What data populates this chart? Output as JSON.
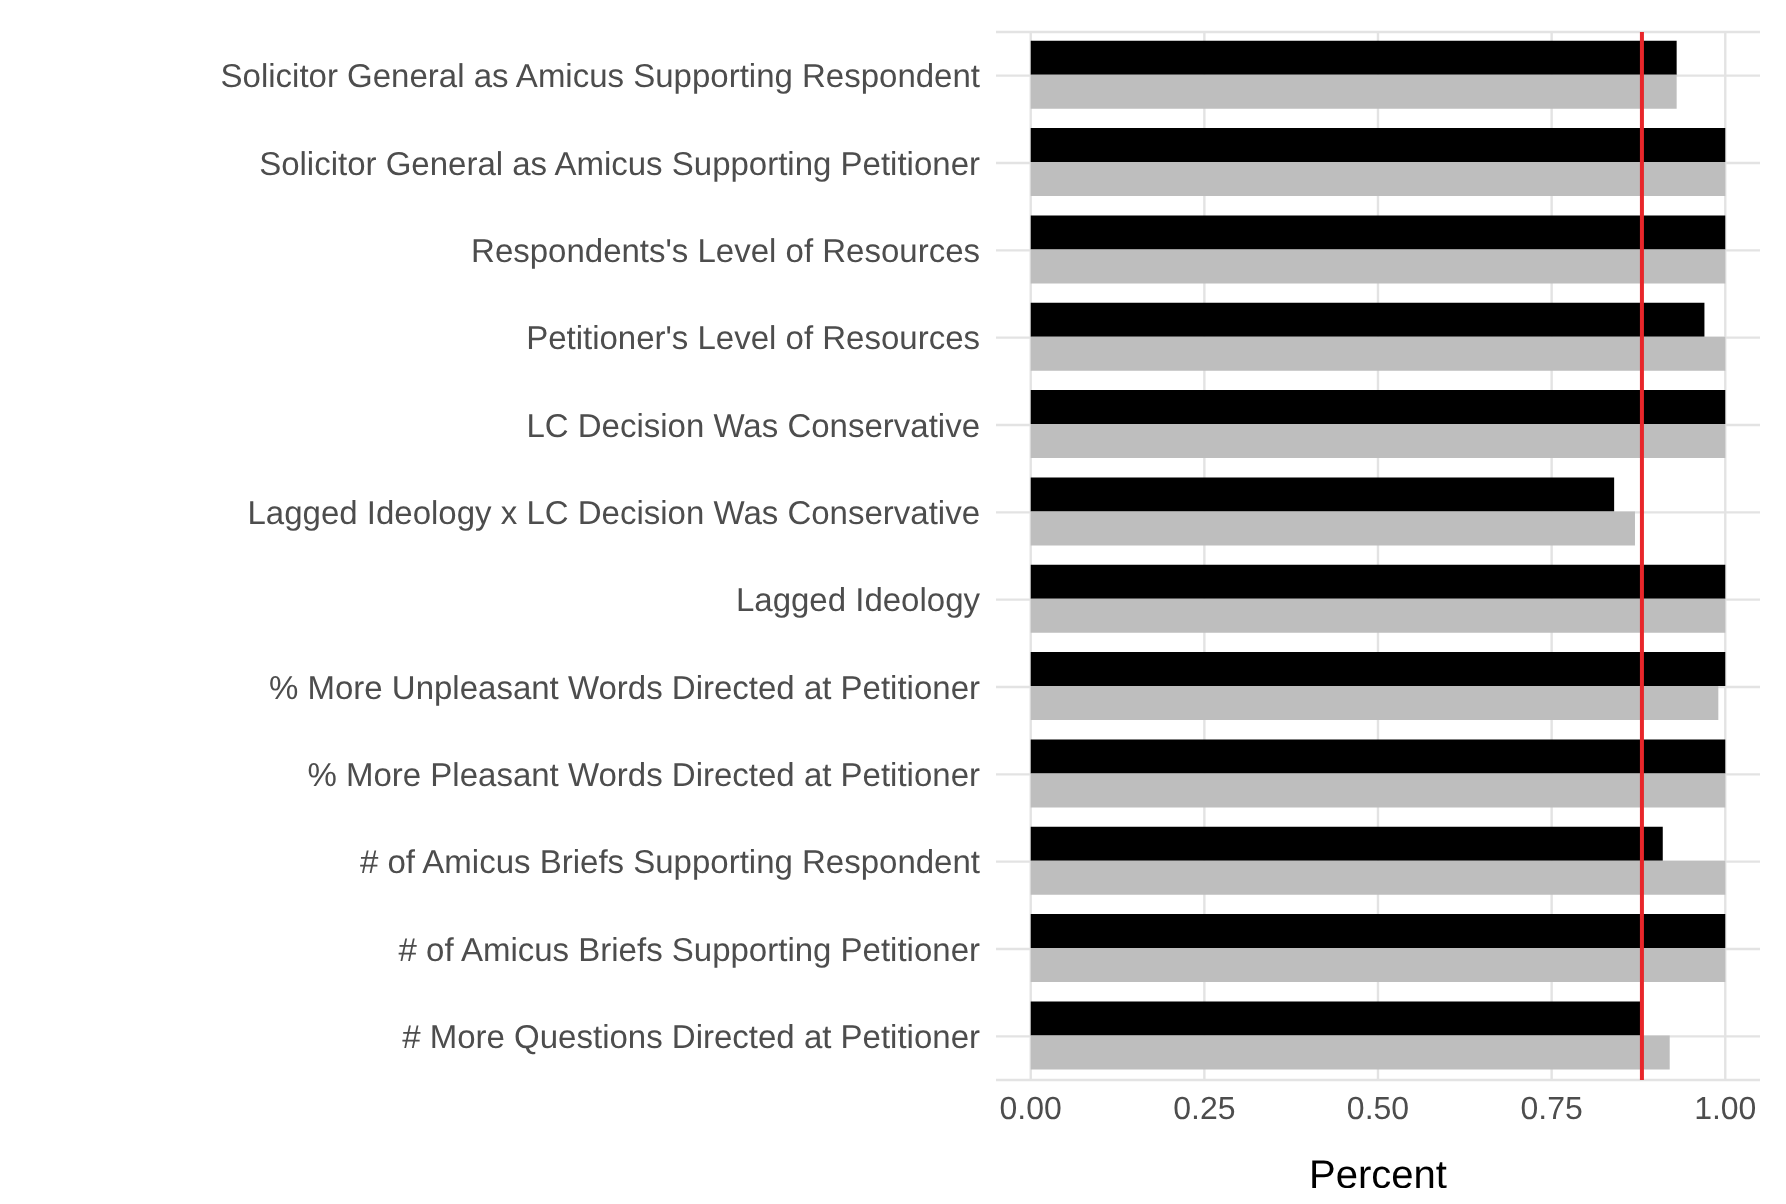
{
  "chart_data": {
    "type": "bar",
    "orientation": "horizontal",
    "xlabel": "Percent",
    "categories": [
      "Solicitor General as Amicus Supporting Respondent",
      "Solicitor General as Amicus Supporting Petitioner",
      "Respondents's Level of Resources",
      "Petitioner's Level of Resources",
      "LC Decision Was Conservative",
      "Lagged Ideology x LC Decision Was Conservative",
      "Lagged Ideology",
      "% More Unpleasant Words Directed at Petitioner",
      "% More Pleasant Words Directed at Petitioner",
      "# of Amicus Briefs Supporting Respondent",
      "# of Amicus Briefs Supporting Petitioner",
      "# More Questions Directed at Petitioner"
    ],
    "series": [
      {
        "color": "#000000",
        "values": [
          0.93,
          1,
          1,
          0.97,
          1,
          0.84,
          1,
          1,
          1,
          0.91,
          1,
          0.88
        ]
      },
      {
        "color": "#bebebe",
        "values": [
          0.93,
          1,
          1,
          1,
          1,
          0.87,
          1,
          0.99,
          1,
          1,
          1,
          0.92
        ]
      }
    ],
    "xlim": [
      -0.05,
      1.05
    ],
    "xticks": [
      {
        "value": 0,
        "label": "0.00"
      },
      {
        "value": 0.25,
        "label": "0.25"
      },
      {
        "value": 0.5,
        "label": "0.50"
      },
      {
        "value": 0.75,
        "label": "0.75"
      },
      {
        "value": 1,
        "label": "1.00"
      }
    ],
    "ref_lines": [
      {
        "axis": "x",
        "value": 0.88,
        "color": "#e8262a"
      }
    ],
    "grid": true,
    "legend": false
  }
}
